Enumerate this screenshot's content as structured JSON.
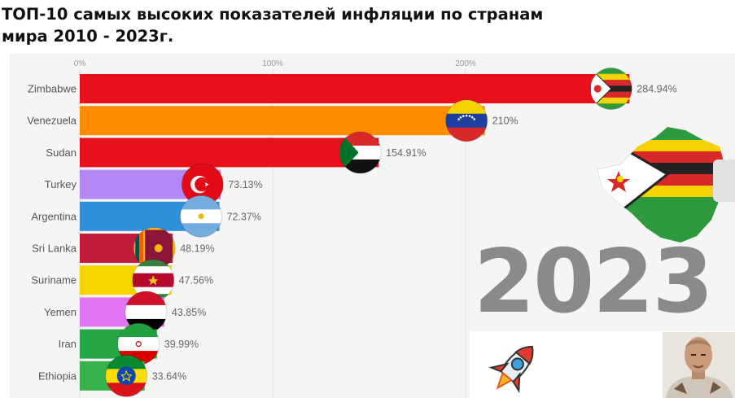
{
  "title": "ТОП-10 самых высоких показателей инфляции по странам мира 2010 - 2023г.",
  "year_label": "2023",
  "chart_data": {
    "type": "bar",
    "orientation": "horizontal",
    "title": "ТОП-10 самых высоких показателей инфляции по странам мира 2010 - 2023г.",
    "categories": [
      "Zimbabwe",
      "Venezuela",
      "Sudan",
      "Turkey",
      "Argentina",
      "Sri Lanka",
      "Suriname",
      "Yemen",
      "Iran",
      "Ethiopia"
    ],
    "values": [
      284.94,
      210,
      154.91,
      73.13,
      72.37,
      48.19,
      47.56,
      43.85,
      39.99,
      33.64
    ],
    "value_labels": [
      "284.94%",
      "210%",
      "154.91%",
      "73.13%",
      "72.37%",
      "48.19%",
      "47.56%",
      "43.85%",
      "39.99%",
      "33.64%"
    ],
    "colors": [
      "#e8101a",
      "#ff8c00",
      "#e8101a",
      "#b388f5",
      "#2f90da",
      "#c21c3c",
      "#f7d300",
      "#e074f2",
      "#27a646",
      "#38b24a"
    ],
    "flags": [
      "zimbabwe-flag",
      "venezuela-flag",
      "sudan-flag",
      "turkey-flag",
      "argentina-flag",
      "sri-lanka-flag",
      "suriname-flag",
      "yemen-flag",
      "iran-flag",
      "ethiopia-flag"
    ],
    "xticks": [
      "0%",
      "100%",
      "200%"
    ],
    "xtick_values": [
      0,
      100,
      200
    ],
    "xlim": [
      0,
      300
    ],
    "grid": true,
    "ylabel": "",
    "xlabel": ""
  },
  "icons": {
    "map": "zimbabwe-map-icon",
    "rocket": "rocket-icon",
    "avatar": "presenter-avatar"
  }
}
